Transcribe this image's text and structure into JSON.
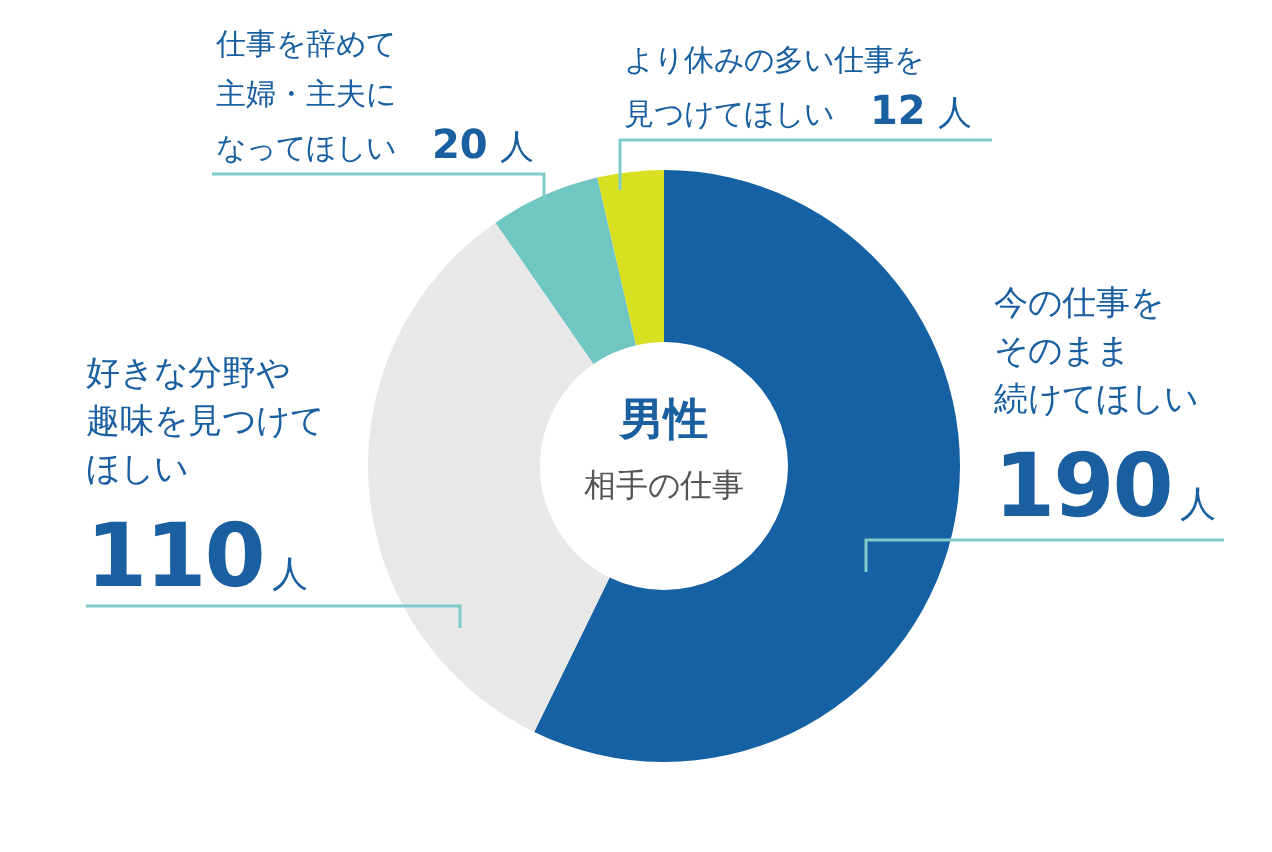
{
  "chart_data": {
    "type": "donut",
    "title": "男性",
    "subtitle": "相手の仕事",
    "categories": [
      "今の仕事をそのまま続けてほしい",
      "好きな分野や趣味を見つけてほしい",
      "仕事を辞めて主婦・主夫になってほしい",
      "より休みの多い仕事を見つけてほしい"
    ],
    "values": [
      190,
      110,
      20,
      12
    ],
    "value_labels": [
      "190人",
      "110人",
      "20 人",
      "12 人"
    ],
    "colors": [
      "#1561a3",
      "#e8e8e8",
      "#6fc6c2",
      "#d9e021"
    ],
    "legend": false
  }
}
